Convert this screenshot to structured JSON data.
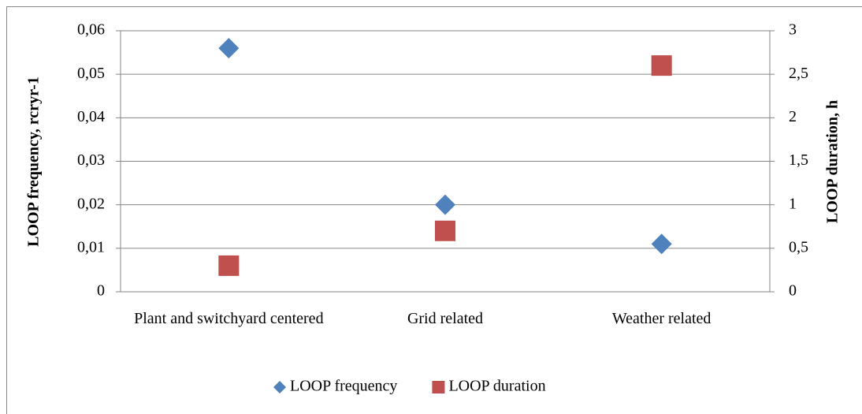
{
  "chart_data": {
    "type": "scatter",
    "categories": [
      "Plant and switchyard centered",
      "Grid related",
      "Weather related"
    ],
    "series": [
      {
        "name": "LOOP frequency",
        "color": "#4f81bd",
        "marker": "diamond",
        "values": [
          0.056,
          0.02,
          0.011
        ]
      },
      {
        "name": "LOOP duration",
        "color": "#c0504d",
        "marker": "square",
        "axis": "y2",
        "values": [
          0.3,
          0.7,
          2.6
        ]
      }
    ],
    "ylabel": "LOOP frequency, rcryr-1",
    "y2label": "LOOP duration, h",
    "ylim": [
      0,
      0.06
    ],
    "yticks": [
      0,
      {
        "value": 0.01,
        "label": "0,01"
      },
      {
        "value": 0.02,
        "label": "0,02"
      },
      {
        "value": 0.03,
        "label": "0,03"
      },
      {
        "value": 0.04,
        "label": "0,04"
      },
      {
        "value": 0.05,
        "label": "0,05"
      },
      {
        "value": 0.06,
        "label": "0,06"
      }
    ],
    "y2lim": [
      0,
      3
    ],
    "y2ticks": [
      0,
      {
        "value": 0.5,
        "label": "0,5"
      },
      1,
      {
        "value": 1.5,
        "label": "1,5"
      },
      2,
      {
        "value": 2.5,
        "label": "2,5"
      },
      3
    ],
    "grid": true,
    "legend": "bottom"
  }
}
